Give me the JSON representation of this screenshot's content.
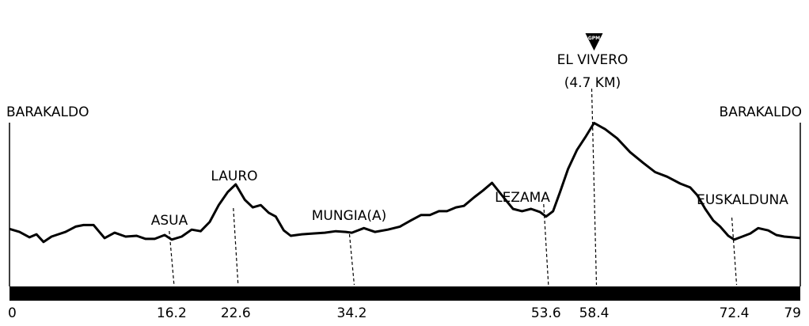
{
  "chart_data": {
    "type": "line",
    "title": "",
    "xlabel": "",
    "ylabel": "",
    "x_range": [
      0,
      79
    ],
    "x_ticks": [
      "0",
      "16.2",
      "22.6",
      "34.2",
      "53.6",
      "58.4",
      "72.4",
      "79"
    ],
    "series": [
      {
        "values": [
          [
            0,
            42
          ],
          [
            1.0,
            38
          ],
          [
            2.0,
            31
          ],
          [
            2.7,
            35
          ],
          [
            3.4,
            25
          ],
          [
            4.2,
            32
          ],
          [
            5.6,
            38
          ],
          [
            6.6,
            45
          ],
          [
            7.4,
            47
          ],
          [
            8.4,
            47
          ],
          [
            9.5,
            30
          ],
          [
            10.5,
            37
          ],
          [
            11.6,
            32
          ],
          [
            12.7,
            33
          ],
          [
            13.6,
            29
          ],
          [
            14.5,
            29
          ],
          [
            15.5,
            34
          ],
          [
            16.2,
            28
          ],
          [
            17.2,
            32
          ],
          [
            18.2,
            41
          ],
          [
            19.1,
            39
          ],
          [
            20.0,
            51
          ],
          [
            20.9,
            73
          ],
          [
            21.8,
            90
          ],
          [
            22.6,
            100
          ],
          [
            23.5,
            80
          ],
          [
            24.3,
            70
          ],
          [
            25.1,
            73
          ],
          [
            25.9,
            63
          ],
          [
            26.6,
            58
          ],
          [
            27.4,
            40
          ],
          [
            28.1,
            33
          ],
          [
            29.2,
            35
          ],
          [
            30.3,
            36
          ],
          [
            31.5,
            37
          ],
          [
            32.6,
            39
          ],
          [
            33.6,
            38
          ],
          [
            34.2,
            37
          ],
          [
            35.4,
            43
          ],
          [
            36.5,
            38
          ],
          [
            37.8,
            41
          ],
          [
            39.0,
            45
          ],
          [
            40.1,
            53
          ],
          [
            41.1,
            60
          ],
          [
            42.0,
            60
          ],
          [
            42.9,
            65
          ],
          [
            43.7,
            65
          ],
          [
            44.6,
            70
          ],
          [
            45.4,
            72
          ],
          [
            46.4,
            83
          ],
          [
            47.3,
            92
          ],
          [
            48.2,
            102
          ],
          [
            49.3,
            84
          ],
          [
            50.3,
            68
          ],
          [
            51.2,
            65
          ],
          [
            52.1,
            68
          ],
          [
            53.0,
            64
          ],
          [
            53.6,
            58
          ],
          [
            54.3,
            65
          ],
          [
            55.0,
            90
          ],
          [
            55.8,
            120
          ],
          [
            56.7,
            145
          ],
          [
            57.6,
            163
          ],
          [
            58.4,
            180
          ],
          [
            59.5,
            172
          ],
          [
            60.7,
            160
          ],
          [
            62.0,
            142
          ],
          [
            63.3,
            128
          ],
          [
            64.5,
            116
          ],
          [
            65.7,
            110
          ],
          [
            67.0,
            101
          ],
          [
            68.0,
            96
          ],
          [
            68.7,
            86
          ],
          [
            69.5,
            68
          ],
          [
            70.3,
            53
          ],
          [
            71.0,
            45
          ],
          [
            71.8,
            33
          ],
          [
            72.4,
            28
          ],
          [
            73.2,
            32
          ],
          [
            74.0,
            36
          ],
          [
            74.8,
            43
          ],
          [
            75.8,
            40
          ],
          [
            76.6,
            34
          ],
          [
            77.4,
            32
          ],
          [
            78.2,
            31
          ],
          [
            79,
            30
          ]
        ]
      }
    ],
    "y_axis_shown": false,
    "grid": false
  },
  "labels": {
    "start": "BARAKALDO",
    "end": "BARAKALDO",
    "asua": "ASUA",
    "lauro": "LAURO",
    "mungia": "MUNGIA(A)",
    "lezama": "LEZAMA",
    "vivero_name": "EL VIVERO",
    "vivero_dist": "(4.7 KM)",
    "euskalduna": "EUSKALDUNA",
    "gpm": "GPM"
  },
  "markers": [
    {
      "name": "asua",
      "km": 16.2,
      "label_key": "asua"
    },
    {
      "name": "lauro",
      "km": 22.6,
      "label_key": "lauro"
    },
    {
      "name": "mungia",
      "km": 34.2,
      "label_key": "mungia"
    },
    {
      "name": "lezama",
      "km": 53.6,
      "label_key": "lezama"
    },
    {
      "name": "el-vivero",
      "km": 58.4,
      "label_key": "vivero_name"
    },
    {
      "name": "euskalduna",
      "km": 72.4,
      "label_key": "euskalduna"
    }
  ],
  "colors": {
    "line": "#000000",
    "baseline_bar": "#000000",
    "background": "#ffffff"
  }
}
